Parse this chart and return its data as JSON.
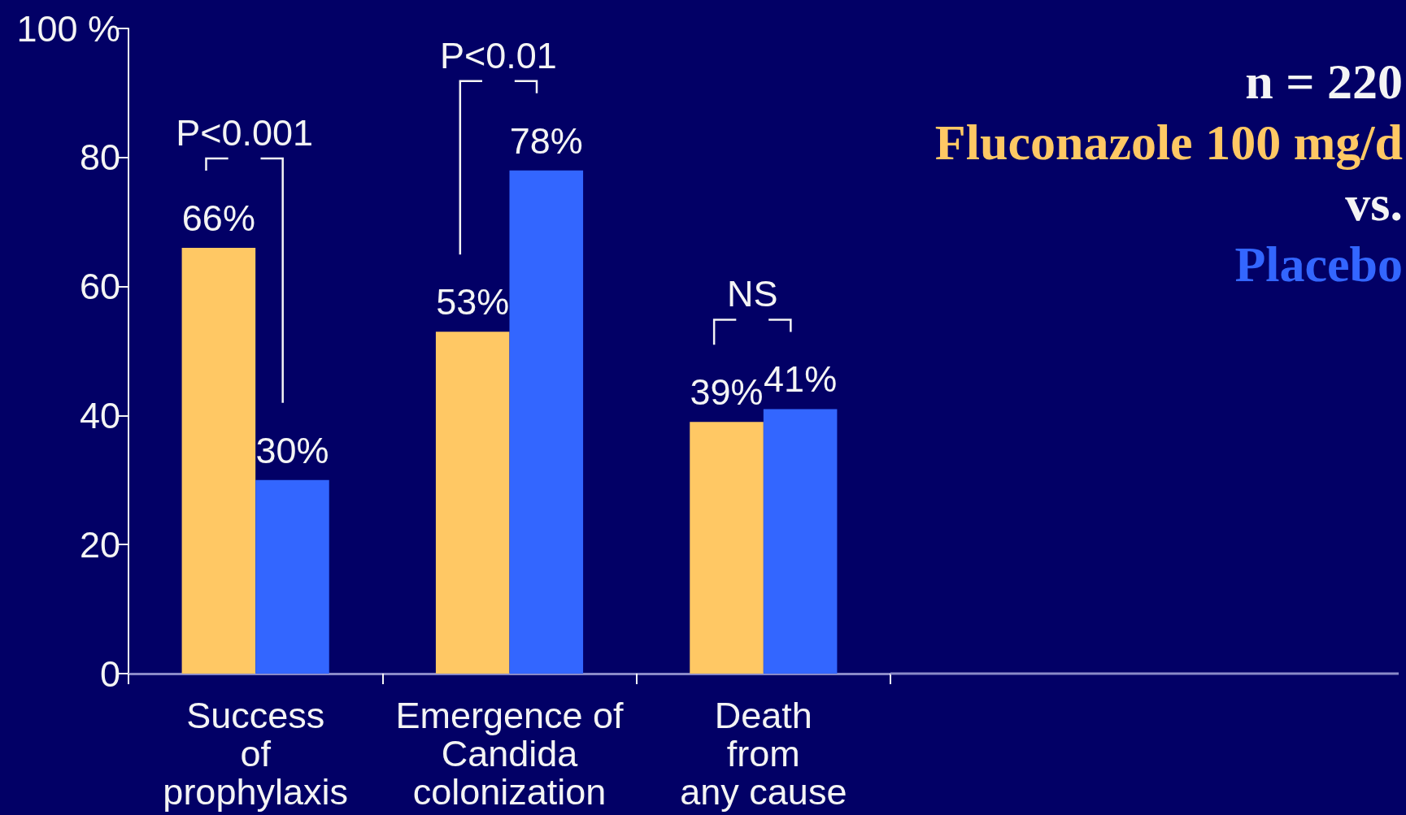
{
  "chart_data": {
    "type": "bar",
    "categories": [
      "Success\nof\nprophylaxis",
      "Emergence of\nCandida\ncolonization",
      "Death\nfrom\nany cause"
    ],
    "series": [
      {
        "name": "Fluconazole 100 mg/d",
        "color": "#ffc864",
        "values": [
          66,
          53,
          39
        ],
        "value_labels": [
          "66%",
          "53%",
          "39%"
        ]
      },
      {
        "name": "Placebo",
        "color": "#3366ff",
        "values": [
          30,
          78,
          41
        ],
        "value_labels": [
          "30%",
          "78%",
          "41%"
        ]
      }
    ],
    "ylim": [
      0,
      100
    ],
    "yticks": [
      0,
      20,
      40,
      60,
      80,
      {
        "value": 100,
        "label": "100 %"
      }
    ],
    "legend": "top right",
    "annotations": [
      "P<0.001",
      "P<0.01",
      "NS",
      "n = 220",
      "vs."
    ]
  }
}
